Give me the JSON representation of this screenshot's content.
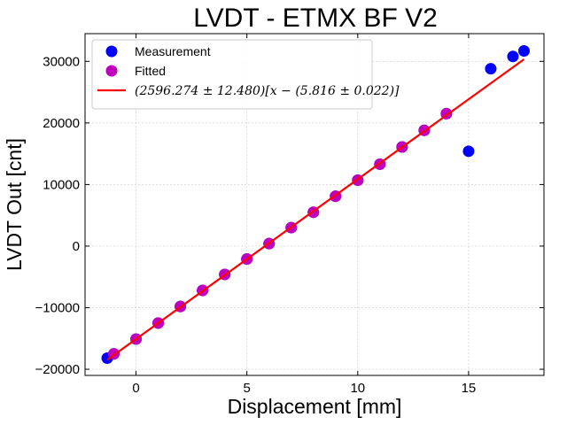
{
  "chart_data": {
    "type": "scatter",
    "title": "LVDT - ETMX BF V2",
    "xlabel": "Displacement [mm]",
    "ylabel": "LVDT Out [cnt]",
    "xlim": [
      -2.3,
      18.4
    ],
    "ylim": [
      -21000,
      34500
    ],
    "xticks": [
      0,
      5,
      10,
      15
    ],
    "xtick_labels": [
      "0",
      "5",
      "10",
      "15"
    ],
    "yticks": [
      -20000,
      -10000,
      0,
      10000,
      20000,
      30000
    ],
    "ytick_labels": [
      "−20000",
      "−10000",
      "0",
      "10000",
      "20000",
      "30000"
    ],
    "grid": true,
    "legend_position": "top-left",
    "series": [
      {
        "name": "Measurement",
        "kind": "scatter",
        "color": "#0000ff",
        "x": [
          -1.3,
          -1,
          0,
          1,
          2,
          3,
          4,
          5,
          6,
          7,
          8,
          9,
          10,
          11,
          12,
          13,
          14,
          15,
          16,
          17,
          17.5
        ],
        "y": [
          -18200,
          -17500,
          -15100,
          -12500,
          -9800,
          -7200,
          -4600,
          -2100,
          400,
          3000,
          5500,
          8100,
          10700,
          13300,
          16100,
          18800,
          21500,
          15400,
          28800,
          30800,
          31700
        ]
      },
      {
        "name": "Fitted",
        "kind": "scatter",
        "color": "#bf00bf",
        "x": [
          -1,
          0,
          1,
          2,
          3,
          4,
          5,
          6,
          7,
          8,
          9,
          10,
          11,
          12,
          13,
          14
        ],
        "y": [
          -17500,
          -15100,
          -12500,
          -9800,
          -7200,
          -4600,
          -2100,
          400,
          3000,
          5500,
          8100,
          10700,
          13300,
          16100,
          18800,
          21500
        ]
      },
      {
        "name": "(2596.274 ± 12.480)[x − (5.816 ± 0.022)]",
        "kind": "line",
        "color": "#ff0000",
        "x": [
          -1.3,
          17.5
        ],
        "y": [
          -18475,
          30334
        ]
      }
    ]
  }
}
